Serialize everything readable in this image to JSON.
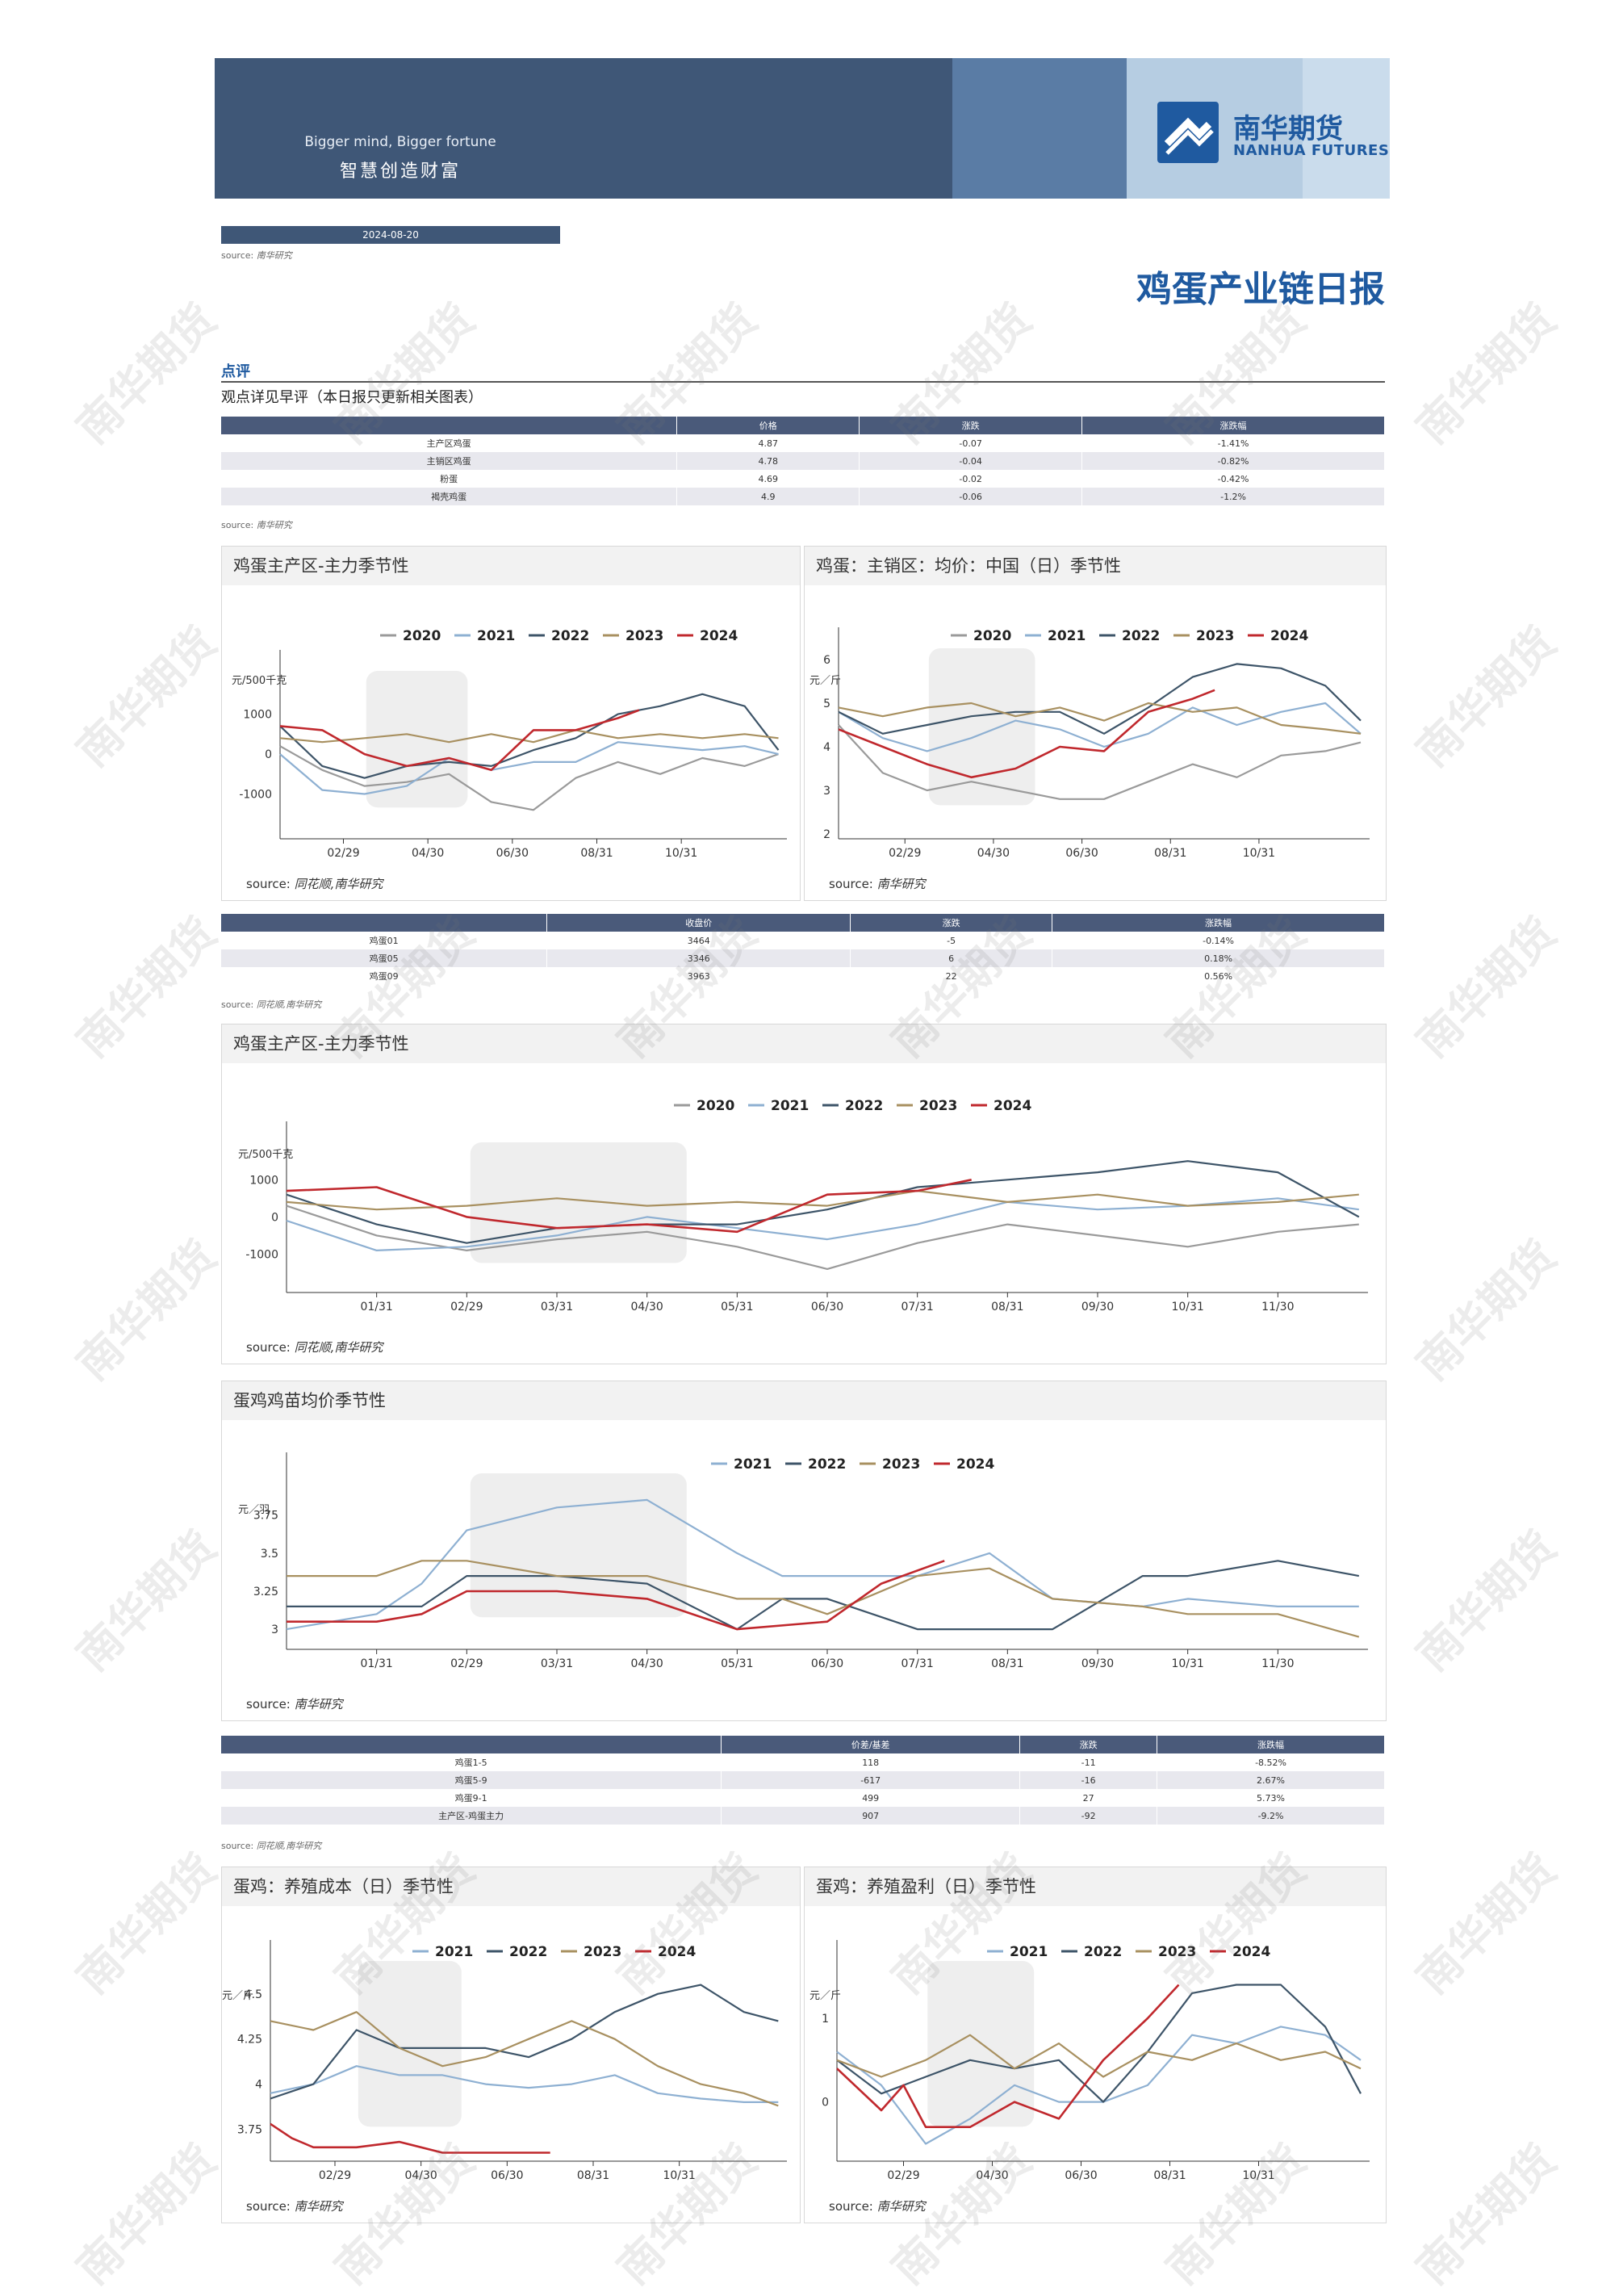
{
  "header": {
    "slogan_en": "Bigger mind, Bigger fortune",
    "slogan_cn": "智慧创造财富",
    "logo_name": "南华期货",
    "logo_en": "NANHUA FUTURES",
    "date": "2024-08-20",
    "source_label": "source:",
    "source_name": "南华研究",
    "report_title": "鸡蛋产业链日报"
  },
  "commentary": {
    "title": "点评",
    "text": "观点详见早评（本日报只更新相关图表）"
  },
  "table1": {
    "columns": [
      "",
      "价格",
      "涨跌",
      "涨跌幅"
    ],
    "rows": [
      [
        "主产区鸡蛋",
        "4.87",
        "-0.07",
        "-1.41%"
      ],
      [
        "主销区鸡蛋",
        "4.78",
        "-0.04",
        "-0.82%"
      ],
      [
        "粉蛋",
        "4.69",
        "-0.02",
        "-0.42%"
      ],
      [
        "褐壳鸡蛋",
        "4.9",
        "-0.06",
        "-1.2%"
      ]
    ],
    "source": "南华研究"
  },
  "table2": {
    "columns": [
      "",
      "收盘价",
      "涨跌",
      "涨跌幅"
    ],
    "rows": [
      [
        "鸡蛋01",
        "3464",
        "-5",
        "-0.14%"
      ],
      [
        "鸡蛋05",
        "3346",
        "6",
        "0.18%"
      ],
      [
        "鸡蛋09",
        "3963",
        "22",
        "0.56%"
      ]
    ],
    "source": "同花顺,南华研究"
  },
  "table3": {
    "columns": [
      "",
      "价差/基差",
      "涨跌",
      "涨跌幅"
    ],
    "rows": [
      [
        "鸡蛋1-5",
        "118",
        "-11",
        "-8.52%"
      ],
      [
        "鸡蛋5-9",
        "-617",
        "-16",
        "2.67%"
      ],
      [
        "鸡蛋9-1",
        "499",
        "27",
        "5.73%"
      ],
      [
        "主产区-鸡蛋主力",
        "907",
        "-92",
        "-9.2%"
      ]
    ],
    "source": "同花顺,南华研究"
  },
  "colors": {
    "2020": "#9a9a9a",
    "2021": "#8eb0d2",
    "2022": "#3d5468",
    "2023": "#a89060",
    "2024": "#c0282d",
    "brand": "#1f5aa0",
    "banner": "#3f5777"
  },
  "watermark": "南华期货",
  "chart_data": [
    {
      "id": "c1",
      "type": "line",
      "title": "鸡蛋主产区-主力季节性",
      "ylabel": "元/500千克",
      "yticks": [
        1000,
        0,
        -1000
      ],
      "ylim": [
        -2000,
        1800
      ],
      "xticks": [
        "02/29",
        "04/30",
        "06/30",
        "08/31",
        "10/31"
      ],
      "xtick_pos": [
        2,
        4,
        6,
        8,
        10
      ],
      "xlim": [
        0.5,
        12.5
      ],
      "source": "同花顺,南华研究",
      "series": [
        {
          "name": "2020",
          "x": [
            0.5,
            1.5,
            2.5,
            3.5,
            4.5,
            5.5,
            6.5,
            7.5,
            8.5,
            9.5,
            10.5,
            11.5,
            12.3
          ],
          "values": [
            200,
            -400,
            -800,
            -700,
            -500,
            -1200,
            -1400,
            -600,
            -200,
            -500,
            -100,
            -300,
            0
          ]
        },
        {
          "name": "2021",
          "x": [
            0.5,
            1.5,
            2.5,
            3.5,
            4.5,
            5.5,
            6.5,
            7.5,
            8.5,
            9.5,
            10.5,
            11.5,
            12.3
          ],
          "values": [
            0,
            -900,
            -1000,
            -800,
            -100,
            -400,
            -200,
            -200,
            300,
            200,
            100,
            200,
            0
          ]
        },
        {
          "name": "2022",
          "x": [
            0.5,
            1.5,
            2.5,
            3.5,
            4.5,
            5.5,
            6.5,
            7.5,
            8.5,
            9.5,
            10.5,
            11.5,
            12.3
          ],
          "values": [
            700,
            -300,
            -600,
            -300,
            -200,
            -300,
            100,
            400,
            1000,
            1200,
            1500,
            1200,
            100
          ]
        },
        {
          "name": "2023",
          "x": [
            0.5,
            1.5,
            2.5,
            3.5,
            4.5,
            5.5,
            6.5,
            7.5,
            8.5,
            9.5,
            10.5,
            11.5,
            12.3
          ],
          "values": [
            400,
            300,
            400,
            500,
            300,
            500,
            300,
            600,
            400,
            500,
            400,
            500,
            400
          ]
        },
        {
          "name": "2024",
          "x": [
            0.5,
            1.5,
            2.5,
            3.5,
            4.5,
            5.5,
            6.5,
            7.5,
            8.5,
            9.0
          ],
          "values": [
            700,
            600,
            0,
            -300,
            -100,
            -400,
            600,
            600,
            900,
            1100
          ]
        }
      ]
    },
    {
      "id": "c2",
      "type": "line",
      "title": "鸡蛋：主销区：均价：中国（日）季节性",
      "ylabel": "元／斤",
      "yticks": [
        6,
        5,
        4,
        3,
        2
      ],
      "ylim": [
        2,
        6
      ],
      "xticks": [
        "02/29",
        "04/30",
        "06/30",
        "08/31",
        "10/31"
      ],
      "xtick_pos": [
        2,
        4,
        6,
        8,
        10
      ],
      "xlim": [
        0.5,
        12.5
      ],
      "source": "南华研究",
      "series": [
        {
          "name": "2020",
          "x": [
            0.5,
            1.5,
            2.5,
            3.5,
            4.5,
            5.5,
            6.5,
            7.5,
            8.5,
            9.5,
            10.5,
            11.5,
            12.3
          ],
          "values": [
            4.5,
            3.4,
            3.0,
            3.2,
            3.0,
            2.8,
            2.8,
            3.2,
            3.6,
            3.3,
            3.8,
            3.9,
            4.1
          ]
        },
        {
          "name": "2021",
          "x": [
            0.5,
            1.5,
            2.5,
            3.5,
            4.5,
            5.5,
            6.5,
            7.5,
            8.5,
            9.5,
            10.5,
            11.5,
            12.3
          ],
          "values": [
            4.8,
            4.2,
            3.9,
            4.2,
            4.6,
            4.4,
            4.0,
            4.3,
            4.9,
            4.5,
            4.8,
            5.0,
            4.3
          ]
        },
        {
          "name": "2022",
          "x": [
            0.5,
            1.5,
            2.5,
            3.5,
            4.5,
            5.5,
            6.5,
            7.5,
            8.5,
            9.5,
            10.5,
            11.5,
            12.3
          ],
          "values": [
            4.8,
            4.3,
            4.5,
            4.7,
            4.8,
            4.8,
            4.3,
            4.9,
            5.6,
            5.9,
            5.8,
            5.4,
            4.6
          ]
        },
        {
          "name": "2023",
          "x": [
            0.5,
            1.5,
            2.5,
            3.5,
            4.5,
            5.5,
            6.5,
            7.5,
            8.5,
            9.5,
            10.5,
            11.5,
            12.3
          ],
          "values": [
            4.9,
            4.7,
            4.9,
            5.0,
            4.7,
            4.9,
            4.6,
            5.0,
            4.8,
            4.9,
            4.5,
            4.4,
            4.3
          ]
        },
        {
          "name": "2024",
          "x": [
            0.5,
            1.5,
            2.5,
            3.5,
            4.5,
            5.5,
            6.5,
            7.5,
            8.5,
            9.0
          ],
          "values": [
            4.4,
            4.0,
            3.6,
            3.3,
            3.5,
            4.0,
            3.9,
            4.8,
            5.1,
            5.3
          ]
        }
      ]
    },
    {
      "id": "c3",
      "type": "line",
      "title": "鸡蛋主产区-主力季节性",
      "ylabel": "元/500千克",
      "yticks": [
        1000,
        0,
        -1000
      ],
      "ylim": [
        -1900,
        1700
      ],
      "xticks": [
        "01/31",
        "02/29",
        "03/31",
        "04/30",
        "05/31",
        "06/30",
        "07/31",
        "08/31",
        "09/30",
        "10/31",
        "11/30"
      ],
      "xtick_pos": [
        1,
        2,
        3,
        4,
        5,
        6,
        7,
        8,
        9,
        10,
        11
      ],
      "xlim": [
        0,
        12
      ],
      "source": "同花顺,南华研究",
      "series": [
        {
          "name": "2020",
          "x": [
            0,
            1,
            2,
            3,
            4,
            5,
            6,
            7,
            8,
            9,
            10,
            11,
            11.9
          ],
          "values": [
            300,
            -500,
            -900,
            -600,
            -400,
            -800,
            -1400,
            -700,
            -200,
            -500,
            -800,
            -400,
            -200
          ]
        },
        {
          "name": "2021",
          "x": [
            0,
            1,
            2,
            3,
            4,
            5,
            6,
            7,
            8,
            9,
            10,
            11,
            11.9
          ],
          "values": [
            -100,
            -900,
            -800,
            -500,
            0,
            -300,
            -600,
            -200,
            400,
            200,
            300,
            500,
            200
          ]
        },
        {
          "name": "2022",
          "x": [
            0,
            1,
            2,
            3,
            4,
            5,
            6,
            7,
            8,
            9,
            10,
            11,
            11.9
          ],
          "values": [
            600,
            -200,
            -700,
            -300,
            -200,
            -200,
            200,
            800,
            1000,
            1200,
            1500,
            1200,
            0
          ]
        },
        {
          "name": "2023",
          "x": [
            0,
            1,
            2,
            3,
            4,
            5,
            6,
            7,
            8,
            9,
            10,
            11,
            11.9
          ],
          "values": [
            400,
            200,
            300,
            500,
            300,
            400,
            300,
            700,
            400,
            600,
            300,
            400,
            600
          ]
        },
        {
          "name": "2024",
          "x": [
            0,
            1,
            2,
            3,
            4,
            5,
            6,
            7,
            7.6
          ],
          "values": [
            700,
            800,
            0,
            -300,
            -200,
            -400,
            600,
            700,
            1000
          ]
        }
      ]
    },
    {
      "id": "c4",
      "type": "line",
      "title": "蛋鸡鸡苗均价季节性",
      "ylabel": "元／羽",
      "yticks": [
        3.75,
        3.5,
        3.25,
        3
      ],
      "ylim": [
        2.9,
        3.95
      ],
      "xticks": [
        "01/31",
        "02/29",
        "03/31",
        "04/30",
        "05/31",
        "06/30",
        "07/31",
        "08/31",
        "09/30",
        "10/31",
        "11/30"
      ],
      "xtick_pos": [
        1,
        2,
        3,
        4,
        5,
        6,
        7,
        8,
        9,
        10,
        11
      ],
      "xlim": [
        0,
        12
      ],
      "source": "南华研究",
      "series": [
        {
          "name": "2021",
          "x": [
            0,
            1,
            1.5,
            2,
            3,
            4,
            5,
            5.5,
            6,
            7,
            7.8,
            8.5,
            9.5,
            10,
            11,
            11.9
          ],
          "values": [
            3.0,
            3.1,
            3.3,
            3.65,
            3.8,
            3.85,
            3.5,
            3.35,
            3.35,
            3.35,
            3.5,
            3.2,
            3.15,
            3.2,
            3.15,
            3.15
          ]
        },
        {
          "name": "2022",
          "x": [
            0,
            1,
            1.5,
            2,
            3,
            4,
            5,
            5.5,
            6,
            7,
            7.8,
            8.5,
            9.5,
            10,
            11,
            11.9
          ],
          "values": [
            3.15,
            3.15,
            3.15,
            3.35,
            3.35,
            3.3,
            3.0,
            3.2,
            3.2,
            3.0,
            3.0,
            3.0,
            3.35,
            3.35,
            3.45,
            3.35
          ]
        },
        {
          "name": "2023",
          "x": [
            0,
            1,
            1.5,
            2,
            3,
            4,
            5,
            5.5,
            6,
            7,
            7.8,
            8.5,
            9.5,
            10,
            11,
            11.9
          ],
          "values": [
            3.35,
            3.35,
            3.45,
            3.45,
            3.35,
            3.35,
            3.2,
            3.2,
            3.1,
            3.35,
            3.4,
            3.2,
            3.15,
            3.1,
            3.1,
            2.95
          ]
        },
        {
          "name": "2024",
          "x": [
            0,
            1,
            1.5,
            2,
            3,
            4,
            5,
            6,
            6.6,
            7.3
          ],
          "values": [
            3.05,
            3.05,
            3.1,
            3.25,
            3.25,
            3.2,
            3.0,
            3.05,
            3.3,
            3.45
          ]
        }
      ]
    },
    {
      "id": "c5",
      "type": "line",
      "title": "蛋鸡：养殖成本（日）季节性",
      "ylabel": "元／斤",
      "yticks": [
        4.5,
        4.25,
        4,
        3.75
      ],
      "ylim": [
        3.6,
        4.62
      ],
      "xticks": [
        "02/29",
        "04/30",
        "06/30",
        "08/31",
        "10/31"
      ],
      "xtick_pos": [
        2,
        4,
        6,
        8,
        10
      ],
      "xlim": [
        0.5,
        12.5
      ],
      "source": "南华研究",
      "series": [
        {
          "name": "2021",
          "x": [
            0.5,
            1.5,
            2.5,
            3.5,
            4.5,
            5.5,
            6.5,
            7.5,
            8.5,
            9.5,
            10.5,
            11.5,
            12.3
          ],
          "values": [
            3.95,
            4.0,
            4.1,
            4.05,
            4.05,
            4.0,
            3.98,
            4.0,
            4.05,
            3.95,
            3.92,
            3.9,
            3.9
          ]
        },
        {
          "name": "2022",
          "x": [
            0.5,
            1.5,
            2.5,
            3.5,
            4.5,
            5.5,
            6.5,
            7.5,
            8.5,
            9.5,
            10.5,
            11.5,
            12.3
          ],
          "values": [
            3.92,
            4.0,
            4.3,
            4.2,
            4.2,
            4.2,
            4.15,
            4.25,
            4.4,
            4.5,
            4.55,
            4.4,
            4.35
          ]
        },
        {
          "name": "2023",
          "x": [
            0.5,
            1.5,
            2.5,
            3.5,
            4.5,
            5.5,
            6.5,
            7.5,
            8.5,
            9.5,
            10.5,
            11.5,
            12.3
          ],
          "values": [
            4.35,
            4.3,
            4.4,
            4.2,
            4.1,
            4.15,
            4.25,
            4.35,
            4.25,
            4.1,
            4.0,
            3.95,
            3.88
          ]
        },
        {
          "name": "2024",
          "x": [
            0.5,
            1.0,
            1.5,
            2.5,
            3.5,
            4.5,
            5.5,
            6.5,
            7.0
          ],
          "values": [
            3.78,
            3.7,
            3.65,
            3.65,
            3.68,
            3.62,
            3.62,
            3.62,
            3.62
          ]
        }
      ]
    },
    {
      "id": "c6",
      "type": "line",
      "title": "蛋鸡：养殖盈利（日）季节性",
      "ylabel": "元／斤",
      "yticks": [
        1,
        0
      ],
      "ylim": [
        -0.65,
        1.55
      ],
      "xticks": [
        "02/29",
        "04/30",
        "06/30",
        "08/31",
        "10/31"
      ],
      "xtick_pos": [
        2,
        4,
        6,
        8,
        10
      ],
      "xlim": [
        0.5,
        12.5
      ],
      "source": "南华研究",
      "series": [
        {
          "name": "2021",
          "x": [
            0.5,
            1.5,
            2.5,
            3.5,
            4.5,
            5.5,
            6.5,
            7.5,
            8.5,
            9.5,
            10.5,
            11.5,
            12.3
          ],
          "values": [
            0.6,
            0.2,
            -0.5,
            -0.2,
            0.2,
            0.0,
            0.0,
            0.2,
            0.8,
            0.7,
            0.9,
            0.8,
            0.5
          ]
        },
        {
          "name": "2022",
          "x": [
            0.5,
            1.5,
            2.5,
            3.5,
            4.5,
            5.5,
            6.5,
            7.5,
            8.5,
            9.5,
            10.5,
            11.5,
            12.3
          ],
          "values": [
            0.5,
            0.1,
            0.3,
            0.5,
            0.4,
            0.5,
            0.0,
            0.6,
            1.3,
            1.4,
            1.4,
            0.9,
            0.1
          ]
        },
        {
          "name": "2023",
          "x": [
            0.5,
            1.5,
            2.5,
            3.5,
            4.5,
            5.5,
            6.5,
            7.5,
            8.5,
            9.5,
            10.5,
            11.5,
            12.3
          ],
          "values": [
            0.5,
            0.3,
            0.5,
            0.8,
            0.4,
            0.7,
            0.3,
            0.6,
            0.5,
            0.7,
            0.5,
            0.6,
            0.4
          ]
        },
        {
          "name": "2024",
          "x": [
            0.5,
            1.5,
            2.0,
            2.5,
            3.5,
            4.5,
            5.5,
            6.5,
            7.5,
            8.2
          ],
          "values": [
            0.4,
            -0.1,
            0.2,
            -0.3,
            -0.3,
            0.0,
            -0.2,
            0.5,
            1.0,
            1.4
          ]
        }
      ]
    }
  ]
}
